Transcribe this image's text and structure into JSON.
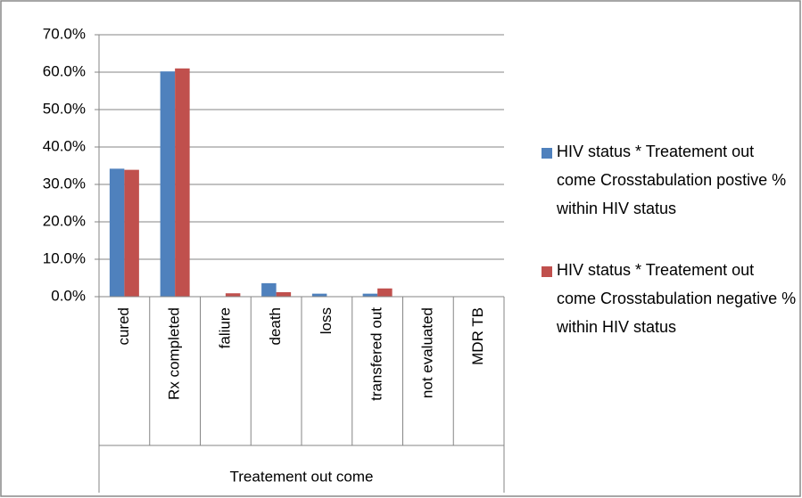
{
  "chart_data": {
    "type": "bar",
    "categories": [
      "cured",
      "Rx completed",
      "faliure",
      "death",
      "loss",
      "transfered out",
      "not evaluated",
      "MDR TB"
    ],
    "series": [
      {
        "name": "HIV status * Treatement out come Crosstabulation postive % within HIV status",
        "color": "#4f81bd",
        "values": [
          34.2,
          60.2,
          0,
          3.6,
          0.8,
          0.8,
          0.1,
          0.1
        ]
      },
      {
        "name": "HIV status * Treatement out come Crosstabulation negative % within HIV status",
        "color": "#c0504d",
        "values": [
          33.9,
          61.0,
          0.9,
          1.2,
          0,
          2.2,
          0.1,
          0.1
        ]
      }
    ],
    "x_axis_label": "Treatement out come",
    "ylim": [
      0,
      70
    ],
    "yticks": [
      {
        "value": 0,
        "label": "0.0%"
      },
      {
        "value": 10,
        "label": "10.0%"
      },
      {
        "value": 20,
        "label": "20.0%"
      },
      {
        "value": 30,
        "label": "30.0%"
      },
      {
        "value": 40,
        "label": "40.0%"
      },
      {
        "value": 50,
        "label": "50.0%"
      },
      {
        "value": 60,
        "label": "60.0%"
      },
      {
        "value": 70,
        "label": "70.0%"
      }
    ],
    "grid": true,
    "legend": "right"
  }
}
